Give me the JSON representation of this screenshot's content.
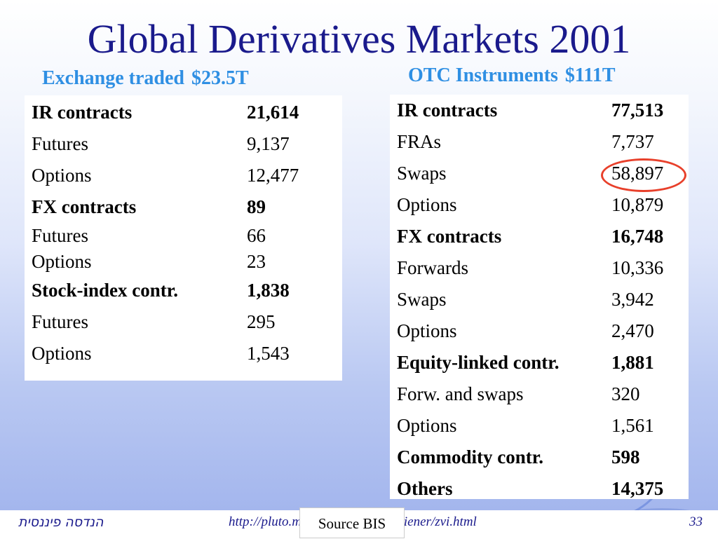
{
  "title": "Global Derivatives Markets 2001",
  "exchange": {
    "heading": "Exchange traded",
    "total": "$23.5T",
    "rows": [
      {
        "label": "IR contracts",
        "value": "21,614",
        "bold": true
      },
      {
        "label": "Futures",
        "value": "9,137",
        "bold": false
      },
      {
        "label": "Options",
        "value": "12,477",
        "bold": false
      },
      {
        "label": "FX contracts",
        "value": "89",
        "bold": true
      },
      {
        "label": "Futures",
        "value": "66",
        "bold": false
      },
      {
        "label": "Options",
        "value": "23",
        "bold": false
      },
      {
        "label": "Stock-index contr.",
        "value": "1,838",
        "bold": true
      },
      {
        "label": "Futures",
        "value": "295",
        "bold": false
      },
      {
        "label": "Options",
        "value": "1,543",
        "bold": false
      }
    ]
  },
  "otc": {
    "heading": "OTC Instruments",
    "total": "$111T",
    "rows": [
      {
        "label": "IR contracts",
        "value": "77,513",
        "bold": true
      },
      {
        "label": "FRAs",
        "value": "7,737",
        "bold": false
      },
      {
        "label": "Swaps",
        "value": "58,897",
        "bold": false
      },
      {
        "label": "Options",
        "value": "10,879",
        "bold": false
      },
      {
        "label": "FX contracts",
        "value": "16,748",
        "bold": true
      },
      {
        "label": "Forwards",
        "value": "10,336",
        "bold": false
      },
      {
        "label": "Swaps",
        "value": "3,942",
        "bold": false
      },
      {
        "label": "Options",
        "value": "2,470",
        "bold": false
      },
      {
        "label": "Equity-linked contr.",
        "value": "1,881",
        "bold": true
      },
      {
        "label": "Forw. and swaps",
        "value": "320",
        "bold": false
      },
      {
        "label": "Options",
        "value": "1,561",
        "bold": false
      },
      {
        "label": "Commodity contr.",
        "value": "598",
        "bold": true
      },
      {
        "label": "Others",
        "value": "14,375",
        "bold": true
      }
    ]
  },
  "highlight_color": "#e8402b",
  "title_color": "#1a1a8c",
  "subtitle_color": "#2f8fe3",
  "footer": {
    "left_text": "הנדסה פיננסית",
    "url": "http://pluto.mscc.huji.ac.il/~mswiener/zvi.html",
    "page": "33",
    "source": "Source BIS"
  }
}
